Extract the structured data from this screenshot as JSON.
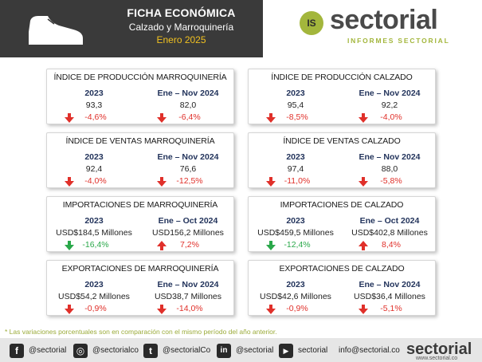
{
  "header": {
    "title": "FICHA ECONÓMICA",
    "subtitle": "Calzado y Marroquinería",
    "date": "Enero 2025",
    "icon": "shoe-icon"
  },
  "logo": {
    "badge": "IS",
    "word": "sectorial",
    "tagline": "INFORMES SECTORIAL"
  },
  "cards": [
    {
      "title": "ÍNDICE DE PRODUCCIÓN MARROQUINERÍA",
      "left": {
        "period": "2023",
        "value": "93,3",
        "change": "-4,6%",
        "direction": "down"
      },
      "right": {
        "period": "Ene – Nov 2024",
        "value": "82,0",
        "change": "-6,4%",
        "direction": "down"
      }
    },
    {
      "title": "ÍNDICE DE PRODUCCIÓN CALZADO",
      "left": {
        "period": "2023",
        "value": "95,4",
        "change": "-8,5%",
        "direction": "down"
      },
      "right": {
        "period": "Ene – Nov 2024",
        "value": "92,2",
        "change": "-4,0%",
        "direction": "down"
      }
    },
    {
      "title": "ÍNDICE DE VENTAS MARROQUINERÍA",
      "left": {
        "period": "2023",
        "value": "92,4",
        "change": "-4,0%",
        "direction": "down"
      },
      "right": {
        "period": "Ene – Nov 2024",
        "value": "76,6",
        "change": "-12,5%",
        "direction": "down"
      }
    },
    {
      "title": "ÍNDICE DE VENTAS CALZADO",
      "left": {
        "period": "2023",
        "value": "97,4",
        "change": "-11,0%",
        "direction": "down"
      },
      "right": {
        "period": "Ene – Nov 2024",
        "value": "88,0",
        "change": "-5,8%",
        "direction": "down"
      }
    },
    {
      "title": "IMPORTACIONES DE MARROQUINERÍA",
      "left": {
        "period": "2023",
        "value": "USD$184,5 Millones",
        "change": "-16,4%",
        "direction": "down-good"
      },
      "right": {
        "period": "Ene – Oct 2024",
        "value": "USD156,2 Millones",
        "change": "7,2%",
        "direction": "up"
      }
    },
    {
      "title": "IMPORTACIONES DE CALZADO",
      "left": {
        "period": "2023",
        "value": "USD$459,5 Millones",
        "change": "-12,4%",
        "direction": "down-good"
      },
      "right": {
        "period": "Ene – Oct 2024",
        "value": "USD$402,8 Millones",
        "change": "8,4%",
        "direction": "up"
      }
    },
    {
      "title": "EXPORTACIONES DE MARROQUINERÍA",
      "left": {
        "period": "2023",
        "value": "USD$54,2 Millones",
        "change": "-0,9%",
        "direction": "down"
      },
      "right": {
        "period": "Ene – Nov 2024",
        "value": "USD38,7 Millones",
        "change": "-14,0%",
        "direction": "down"
      }
    },
    {
      "title": "EXPORTACIONES DE CALZADO",
      "left": {
        "period": "2023",
        "value": "USD$42,6 Millones",
        "change": "-0,9%",
        "direction": "down"
      },
      "right": {
        "period": "Ene – Nov 2024",
        "value": "USD$36,4 Millones",
        "change": "-5,1%",
        "direction": "down"
      }
    }
  ],
  "note": "* Las variaciones porcentuales son en comparación con el mismo período del año anterior.",
  "footer": {
    "facebook": "@sectorial",
    "instagram": "@sectorialco",
    "twitter": "@sectorialCo",
    "linkedin": "@sectorial",
    "youtube": "sectorial",
    "email": "info@sectorial.co",
    "brand": "sectorial",
    "brand_url": "www.sectorial.co"
  },
  "colors": {
    "header_bg": "#3a3a3a",
    "date_yellow": "#f0c020",
    "accent_green": "#a3b63c",
    "period_navy": "#23345c",
    "negative_red": "#e0302a",
    "positive_green": "#2aa84a"
  }
}
